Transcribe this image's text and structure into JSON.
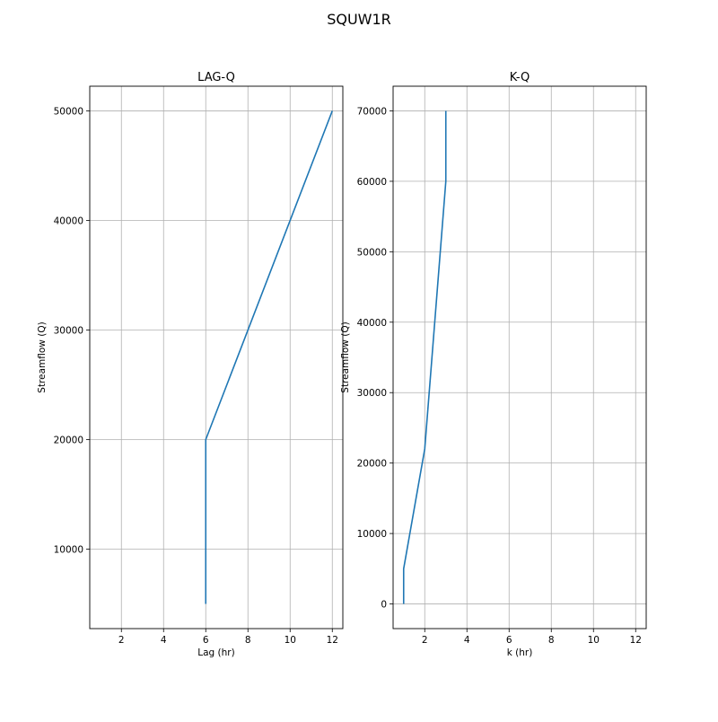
{
  "figure": {
    "title": "SQUW1R"
  },
  "chart_data": [
    {
      "type": "line",
      "title": "LAG-Q",
      "xlabel": "Lag (hr)",
      "ylabel": "Streamflow (Q)",
      "xlim": [
        0.5,
        12.5
      ],
      "ylim": [
        2750,
        52250
      ],
      "xticks": [
        2,
        4,
        6,
        8,
        10,
        12
      ],
      "yticks": [
        10000,
        20000,
        30000,
        40000,
        50000
      ],
      "grid": true,
      "color": "#1f77b4",
      "x": [
        6,
        6,
        12
      ],
      "y": [
        5000,
        20000,
        50000
      ]
    },
    {
      "type": "line",
      "title": "K-Q",
      "xlabel": "k (hr)",
      "ylabel": "Streamflow (Q)",
      "xlim": [
        0.5,
        12.5
      ],
      "ylim": [
        -3500,
        73500
      ],
      "xticks": [
        2,
        4,
        6,
        8,
        10,
        12
      ],
      "yticks": [
        0,
        10000,
        20000,
        30000,
        40000,
        50000,
        60000,
        70000
      ],
      "grid": true,
      "color": "#1f77b4",
      "x": [
        1,
        1,
        2,
        3,
        3
      ],
      "y": [
        0,
        5000,
        22000,
        60000,
        70000
      ]
    }
  ]
}
